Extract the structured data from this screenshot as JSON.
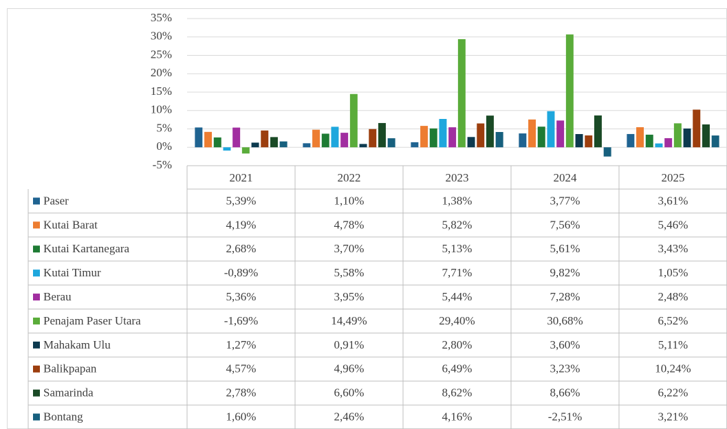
{
  "chart_data": {
    "type": "bar",
    "categories": [
      "2021",
      "2022",
      "2023",
      "2024",
      "2025"
    ],
    "ylim": [
      -5,
      35
    ],
    "yticks": [
      {
        "value": -5,
        "label": "-5%"
      },
      {
        "value": 0,
        "label": "0%"
      },
      {
        "value": 5,
        "label": "5%"
      },
      {
        "value": 10,
        "label": "10%"
      },
      {
        "value": 15,
        "label": "15%"
      },
      {
        "value": 20,
        "label": "20%"
      },
      {
        "value": 25,
        "label": "25%"
      },
      {
        "value": 30,
        "label": "30%"
      },
      {
        "value": 35,
        "label": "35%"
      }
    ],
    "grid": true,
    "series": [
      {
        "name": "Paser",
        "color": "#1f6391",
        "values": [
          5.39,
          1.1,
          1.38,
          3.77,
          3.61
        ],
        "value_labels": [
          "5,39%",
          "1,10%",
          "1,38%",
          "3,77%",
          "3,61%"
        ]
      },
      {
        "name": "Kutai Barat",
        "color": "#ed7d31",
        "values": [
          4.19,
          4.78,
          5.82,
          7.56,
          5.46
        ],
        "value_labels": [
          "4,19%",
          "4,78%",
          "5,82%",
          "7,56%",
          "5,46%"
        ]
      },
      {
        "name": "Kutai Kartanegara",
        "color": "#1e7b34",
        "values": [
          2.68,
          3.7,
          5.13,
          5.61,
          3.43
        ],
        "value_labels": [
          "2,68%",
          "3,70%",
          "5,13%",
          "5,61%",
          "3,43%"
        ]
      },
      {
        "name": "Kutai Timur",
        "color": "#1ea7dd",
        "values": [
          -0.89,
          5.58,
          7.71,
          9.82,
          1.05
        ],
        "value_labels": [
          "-0,89%",
          "5,58%",
          "7,71%",
          "9,82%",
          "1,05%"
        ]
      },
      {
        "name": "Berau",
        "color": "#a12ea0",
        "values": [
          5.36,
          3.95,
          5.44,
          7.28,
          2.48
        ],
        "value_labels": [
          "5,36%",
          "3,95%",
          "5,44%",
          "7,28%",
          "2,48%"
        ]
      },
      {
        "name": "Penajam Paser Utara",
        "color": "#5aac3a",
        "values": [
          -1.69,
          14.49,
          29.4,
          30.68,
          6.52
        ],
        "value_labels": [
          "-1,69%",
          "14,49%",
          "29,40%",
          "30,68%",
          "6,52%"
        ]
      },
      {
        "name": "Mahakam Ulu",
        "color": "#0d3a4f",
        "values": [
          1.27,
          0.91,
          2.8,
          3.6,
          5.11
        ],
        "value_labels": [
          "1,27%",
          "0,91%",
          "2,80%",
          "3,60%",
          "5,11%"
        ]
      },
      {
        "name": "Balikpapan",
        "color": "#9c3e0e",
        "values": [
          4.57,
          4.96,
          6.49,
          3.23,
          10.24
        ],
        "value_labels": [
          "4,57%",
          "4,96%",
          "6,49%",
          "3,23%",
          "10,24%"
        ]
      },
      {
        "name": "Samarinda",
        "color": "#1a4a26",
        "values": [
          2.78,
          6.6,
          8.62,
          8.66,
          6.22
        ],
        "value_labels": [
          "2,78%",
          "6,60%",
          "8,62%",
          "8,66%",
          "6,22%"
        ]
      },
      {
        "name": "Bontang",
        "color": "#17607e",
        "values": [
          1.6,
          2.46,
          4.16,
          -2.51,
          3.21
        ],
        "value_labels": [
          "1,60%",
          "2,46%",
          "4,16%",
          "-2,51%",
          "3,21%"
        ]
      }
    ]
  }
}
